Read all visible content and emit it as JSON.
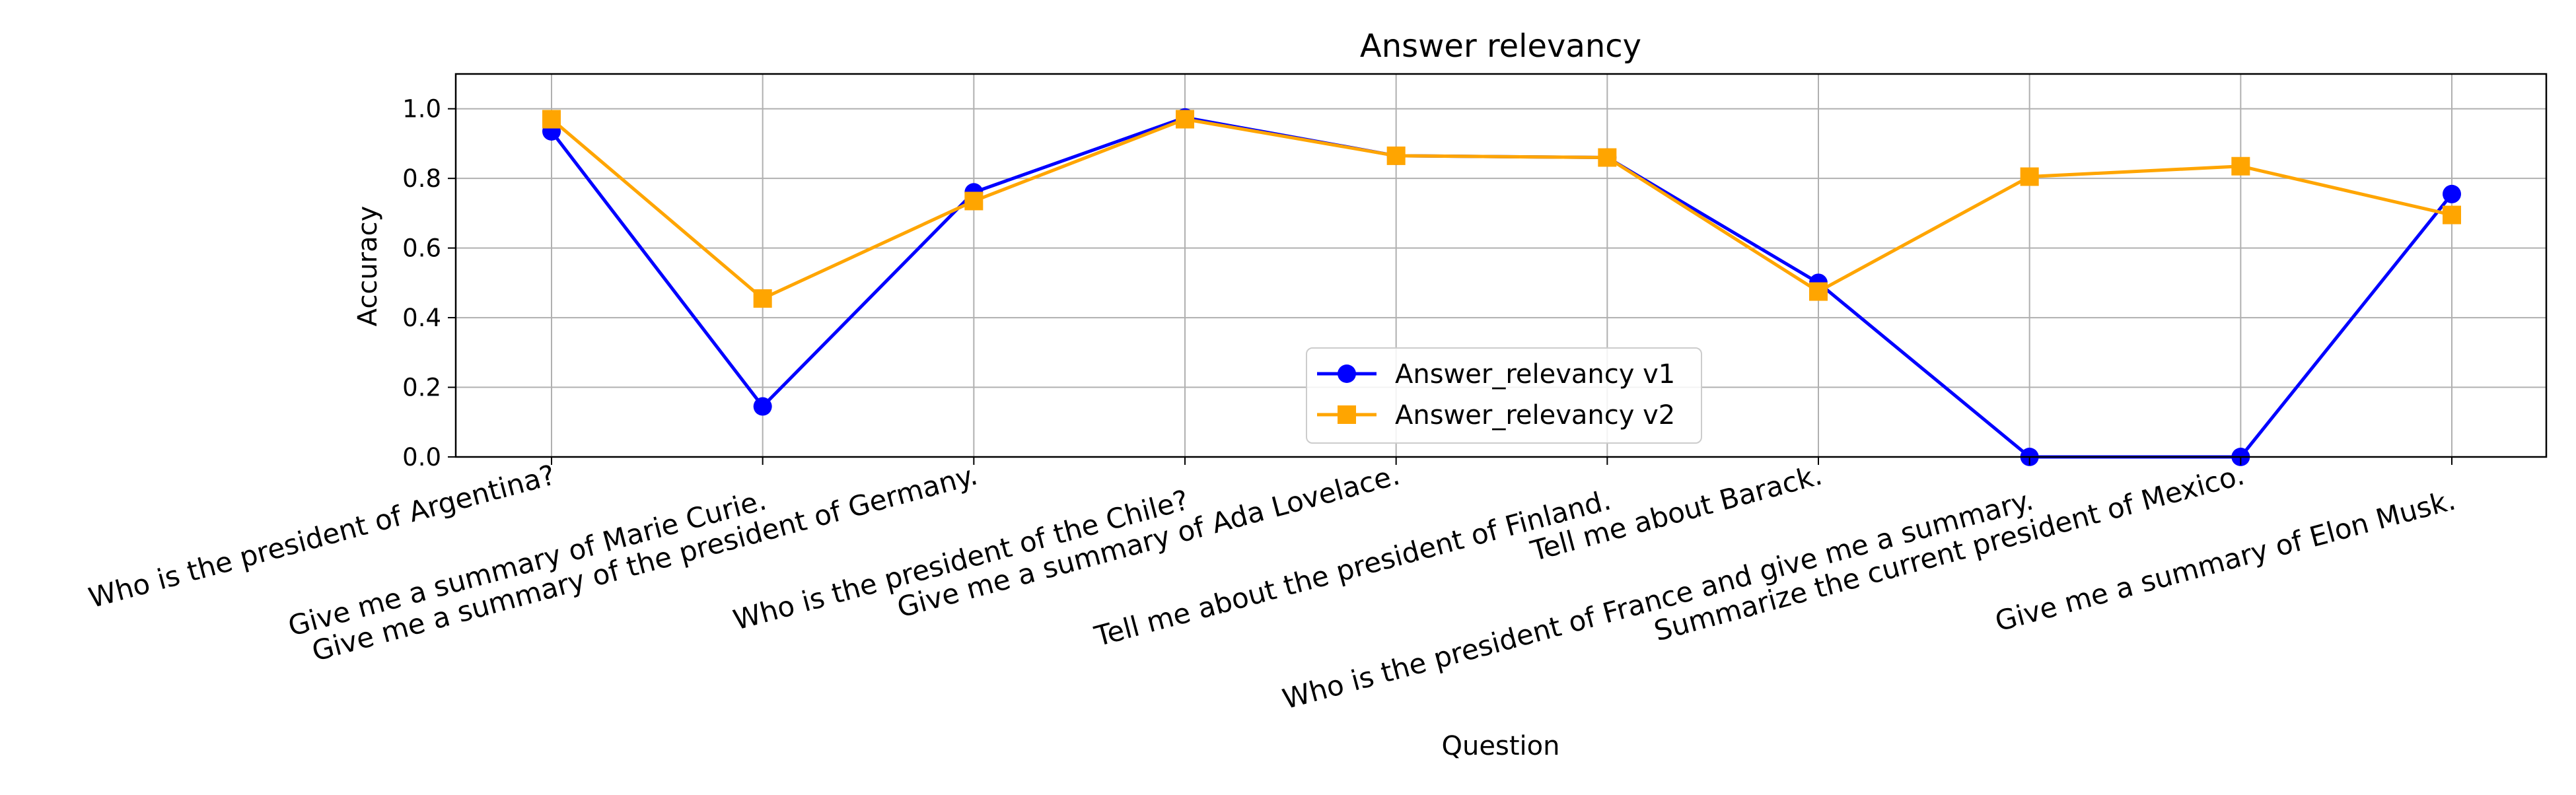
{
  "chart_data": {
    "type": "line",
    "title": "Answer relevancy",
    "xlabel": "Question",
    "ylabel": "Accuracy",
    "ylim": [
      0,
      1.1
    ],
    "yticks": [
      "0.0",
      "0.2",
      "0.4",
      "0.6",
      "0.8",
      "1.0"
    ],
    "grid": true,
    "legend_position": "bottom-center",
    "categories": [
      "Who is the president of Argentina?",
      "Give me a summary of Marie Curie.",
      "Give me a summary of the president of Germany.",
      "Who is the president of the Chile?",
      "Give me a summary of Ada Lovelace.",
      "Tell me about the president of Finland.",
      "Tell me about Barack.",
      "Who is the president of France and give me a summary.",
      "Summarize the current president of Mexico.",
      "Give me a summary of Elon Musk."
    ],
    "series": [
      {
        "name": "Answer_relevancy v1",
        "color": "#0000ff",
        "marker": "circle",
        "values": [
          0.935,
          0.145,
          0.76,
          0.975,
          0.865,
          0.86,
          0.5,
          0.0,
          0.0,
          0.755
        ]
      },
      {
        "name": "Answer_relevancy v2",
        "color": "#ffa500",
        "marker": "square",
        "values": [
          0.97,
          0.455,
          0.735,
          0.97,
          0.865,
          0.86,
          0.475,
          0.805,
          0.835,
          0.695
        ]
      }
    ]
  }
}
